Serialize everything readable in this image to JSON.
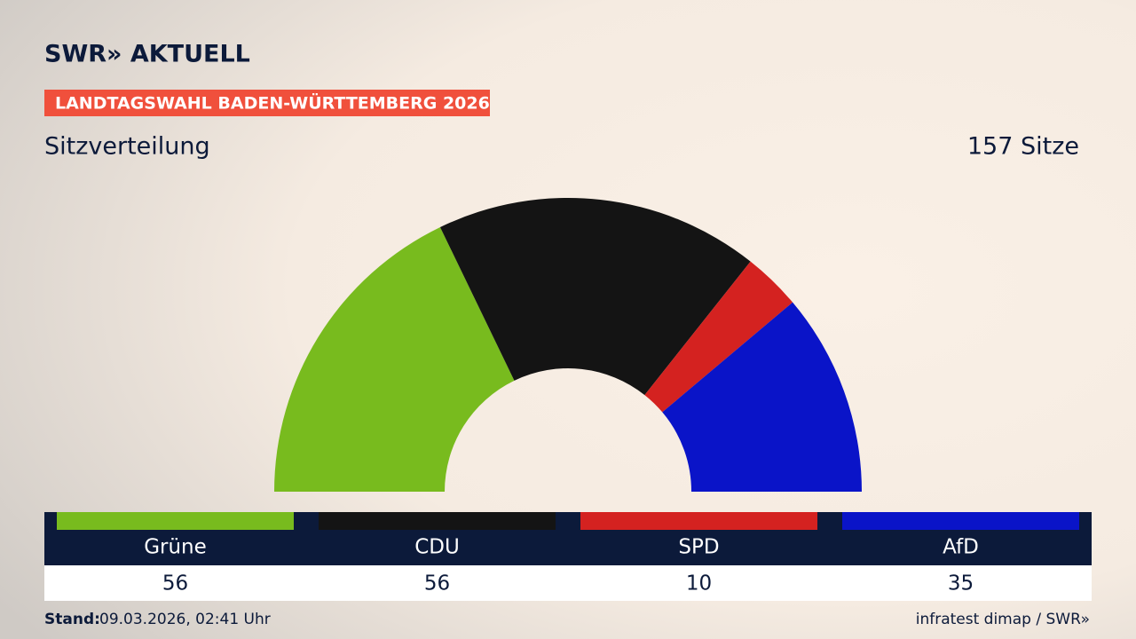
{
  "brand": "SWR» AKTUELL",
  "badge": "LANDTAGSWAHL BADEN-WÜRTTEMBERG 2026",
  "chart_data": {
    "type": "half-donut",
    "title": "Sitzverteilung",
    "total_label": "157 Sitze",
    "categories": [
      "Grüne",
      "CDU",
      "SPD",
      "AfD"
    ],
    "values": [
      56,
      56,
      10,
      35
    ],
    "colors": [
      "#78bb1e",
      "#141414",
      "#d42220",
      "#0a14c8"
    ]
  },
  "footer": {
    "stand_label": "Stand:",
    "stand_value": "09.03.2026, 02:41 Uhr",
    "source": "infratest dimap / SWR»"
  }
}
